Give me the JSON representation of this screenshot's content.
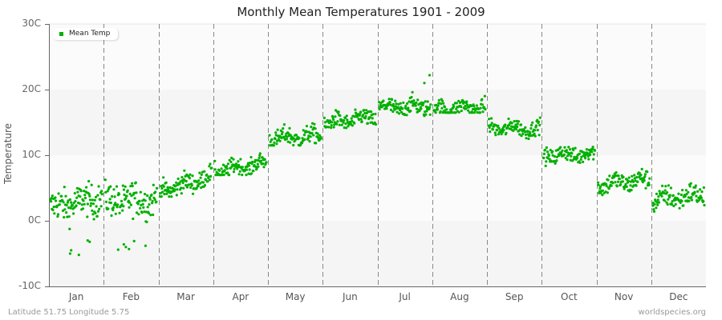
{
  "title": "Monthly Mean Temperatures 1901 - 2009",
  "footer": {
    "location": "Latitude 51.75 Longitude 5.75",
    "source": "worldspecies.org"
  },
  "legend": {
    "label": "Mean Temp",
    "color": "#00b000"
  },
  "colors": {
    "point": "#00b000",
    "band_light": "#fbfbfb",
    "band_dark": "#f5f5f5",
    "gridline": "#888888",
    "axis": "#666666"
  },
  "chart_data": {
    "type": "scatter",
    "title": "Monthly Mean Temperatures 1901 - 2009",
    "xlabel": "",
    "ylabel": "Temperature",
    "ylim": [
      -10,
      30
    ],
    "yticks": [
      "-10C",
      "0C",
      "10C",
      "20C",
      "30C"
    ],
    "categories": [
      "Jan",
      "Feb",
      "Mar",
      "Apr",
      "May",
      "Jun",
      "Jul",
      "Aug",
      "Sep",
      "Oct",
      "Nov",
      "Dec"
    ],
    "legend": [
      "Mean Temp"
    ],
    "years": "1901-2009",
    "points_per_month": 109,
    "series": [
      {
        "name": "Mean Temp",
        "month_summary": [
          {
            "month": "Jan",
            "start_mean": 2.0,
            "end_mean": 3.5,
            "spread": 2.4,
            "min": -5.2,
            "max": 6.5
          },
          {
            "month": "Feb",
            "start_mean": 3.0,
            "end_mean": 3.2,
            "spread": 2.5,
            "min": -4.5,
            "max": 7.0
          },
          {
            "month": "Mar",
            "start_mean": 4.5,
            "end_mean": 6.8,
            "spread": 1.4,
            "min": 2.2,
            "max": 9.0
          },
          {
            "month": "Apr",
            "start_mean": 7.5,
            "end_mean": 8.8,
            "spread": 1.2,
            "min": 5.5,
            "max": 11.0
          },
          {
            "month": "May",
            "start_mean": 12.5,
            "end_mean": 13.0,
            "spread": 1.3,
            "min": 10.0,
            "max": 16.0
          },
          {
            "month": "Jun",
            "start_mean": 14.8,
            "end_mean": 15.8,
            "spread": 1.2,
            "min": 12.5,
            "max": 18.5
          },
          {
            "month": "Jul",
            "start_mean": 17.2,
            "end_mean": 17.5,
            "spread": 1.3,
            "min": 14.5,
            "max": 22.2
          },
          {
            "month": "Aug",
            "start_mean": 17.0,
            "end_mean": 17.3,
            "spread": 1.2,
            "min": 15.0,
            "max": 21.0
          },
          {
            "month": "Sep",
            "start_mean": 14.2,
            "end_mean": 14.0,
            "spread": 1.1,
            "min": 11.0,
            "max": 18.0
          },
          {
            "month": "Oct",
            "start_mean": 10.0,
            "end_mean": 10.2,
            "spread": 1.2,
            "min": 6.5,
            "max": 14.0
          },
          {
            "month": "Nov",
            "start_mean": 5.5,
            "end_mean": 6.3,
            "spread": 1.4,
            "min": 1.5,
            "max": 10.0
          },
          {
            "month": "Dec",
            "start_mean": 3.2,
            "end_mean": 4.0,
            "spread": 1.6,
            "min": -1.2,
            "max": 8.0
          }
        ]
      }
    ],
    "outliers": [
      {
        "month": "Jan",
        "pos": 0.38,
        "value": -5.0
      },
      {
        "month": "Jan",
        "pos": 0.4,
        "value": -4.5
      },
      {
        "month": "Jan",
        "pos": 0.55,
        "value": -5.2
      },
      {
        "month": "Jan",
        "pos": 0.72,
        "value": -3.0
      },
      {
        "month": "Jan",
        "pos": 0.76,
        "value": -3.2
      },
      {
        "month": "Feb",
        "pos": 0.25,
        "value": -4.4
      },
      {
        "month": "Feb",
        "pos": 0.36,
        "value": -3.6
      },
      {
        "month": "Feb",
        "pos": 0.4,
        "value": -4.0
      },
      {
        "month": "Feb",
        "pos": 0.46,
        "value": -4.3
      },
      {
        "month": "Feb",
        "pos": 0.56,
        "value": -3.1
      },
      {
        "month": "Feb",
        "pos": 0.78,
        "value": -3.8
      },
      {
        "month": "Jul",
        "pos": 0.98,
        "value": 22.2
      },
      {
        "month": "Jul",
        "pos": 0.88,
        "value": 21.0
      }
    ]
  }
}
